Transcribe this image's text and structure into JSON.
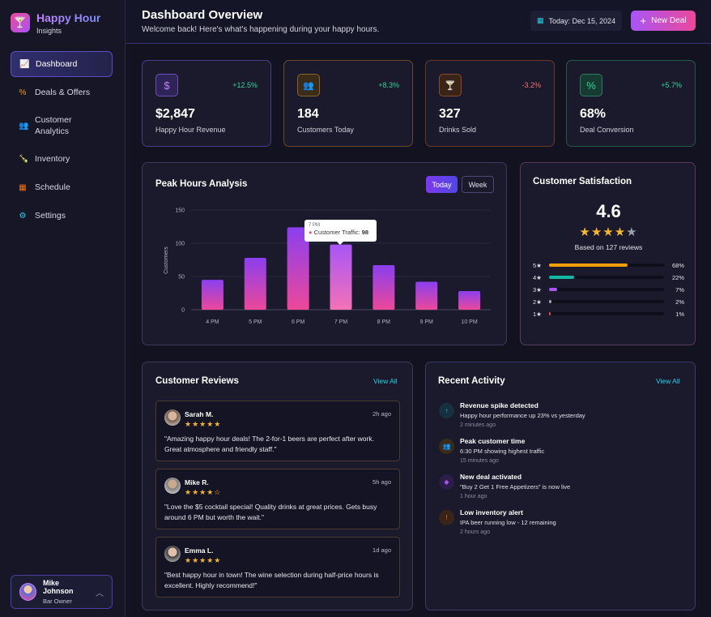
{
  "brand": {
    "title": "Happy Hour",
    "subtitle": "Insights"
  },
  "nav": [
    {
      "label": "Dashboard",
      "icon": "chart-line-icon",
      "active": true
    },
    {
      "label": "Deals & Offers",
      "icon": "percent-icon"
    },
    {
      "label": "Customer Analytics",
      "icon": "users-icon"
    },
    {
      "label": "Inventory",
      "icon": "wine-bottle-icon"
    },
    {
      "label": "Schedule",
      "icon": "calendar-icon"
    },
    {
      "label": "Settings",
      "icon": "gear-icon"
    }
  ],
  "user": {
    "name": "Mike Johnson",
    "role": "Bar Owner"
  },
  "header": {
    "title": "Dashboard Overview",
    "subtitle": "Welcome back! Here's what's happening during your happy hours.",
    "date": "Today: Dec 15, 2024",
    "new_deal": "New Deal"
  },
  "stats": [
    {
      "value": "$2,847",
      "label": "Happy Hour Revenue",
      "change": "+12.5%",
      "icon": "$",
      "color": "#a855f7",
      "changeColor": "#34d399"
    },
    {
      "value": "184",
      "label": "Customers Today",
      "change": "+8.3%",
      "icon": "👥",
      "color": "#f59e0b",
      "changeColor": "#34d399"
    },
    {
      "value": "327",
      "label": "Drinks Sold",
      "change": "-3.2%",
      "icon": "🍸",
      "color": "#f97316",
      "changeColor": "#f87171"
    },
    {
      "value": "68%",
      "label": "Deal Conversion",
      "change": "+5.7%",
      "icon": "%",
      "color": "#34d399",
      "changeColor": "#34d399"
    }
  ],
  "peak": {
    "title": "Peak Hours Analysis",
    "toggle_today": "Today",
    "toggle_week": "Week",
    "tooltip_time": "7 PM",
    "tooltip_label": "Customer Traffic:",
    "tooltip_value": "98"
  },
  "chart_data": {
    "type": "bar",
    "categories": [
      "4 PM",
      "5 PM",
      "6 PM",
      "7 PM",
      "8 PM",
      "9 PM",
      "10 PM"
    ],
    "values": [
      45,
      78,
      124,
      98,
      67,
      42,
      28
    ],
    "ylabel": "Customers",
    "ylim": [
      0,
      150
    ],
    "yticks": [
      0,
      50,
      100,
      150
    ]
  },
  "satisfaction": {
    "title": "Customer Satisfaction",
    "score": "4.6",
    "stars": 4,
    "based_on": "Based on 127 reviews",
    "rows": [
      {
        "label": "5★",
        "pct": "68%",
        "value": 68,
        "color": "#f59e0b"
      },
      {
        "label": "4★",
        "pct": "22%",
        "value": 22,
        "color": "#14b8a6"
      },
      {
        "label": "3★",
        "pct": "7%",
        "value": 7,
        "color": "#a855f7"
      },
      {
        "label": "2★",
        "pct": "2%",
        "value": 2,
        "color": "#9ca3af"
      },
      {
        "label": "1★",
        "pct": "1%",
        "value": 1,
        "color": "#ef4444"
      }
    ]
  },
  "reviews": {
    "title": "Customer Reviews",
    "view_all": "View All",
    "items": [
      {
        "name": "Sarah M.",
        "time": "2h ago",
        "stars": "★★★★★",
        "text": "\"Amazing happy hour deals! The 2-for-1 beers are perfect after work. Great atmosphere and friendly staff.\""
      },
      {
        "name": "Mike R.",
        "time": "5h ago",
        "stars": "★★★★☆",
        "text": "\"Love the $5 cocktail special! Quality drinks at great prices. Gets busy around 6 PM but worth the wait.\""
      },
      {
        "name": "Emma L.",
        "time": "1d ago",
        "stars": "★★★★★",
        "text": "\"Best happy hour in town! The wine selection during half-price hours is excellent. Highly recommend!\""
      }
    ]
  },
  "activity": {
    "title": "Recent Activity",
    "view_all": "View All",
    "items": [
      {
        "title": "Revenue spike detected",
        "desc": "Happy hour performance up 23% vs yesterday",
        "time": "2 minutes ago",
        "icon": "↑",
        "color": "#22d3ee",
        "bg": "#163040"
      },
      {
        "title": "Peak customer time",
        "desc": "6:30 PM showing highest traffic",
        "time": "15 minutes ago",
        "icon": "👥",
        "color": "#f59e0b",
        "bg": "#3a2c18"
      },
      {
        "title": "New deal activated",
        "desc": "\"Buy 2 Get 1 Free Appetizers\" is now live",
        "time": "1 hour ago",
        "icon": "🏷",
        "color": "#a855f7",
        "bg": "#2c1e48"
      },
      {
        "title": "Low inventory alert",
        "desc": "IPA beer running low - 12 remaining",
        "time": "2 hours ago",
        "icon": "!",
        "color": "#f97316",
        "bg": "#3a2418"
      }
    ]
  }
}
